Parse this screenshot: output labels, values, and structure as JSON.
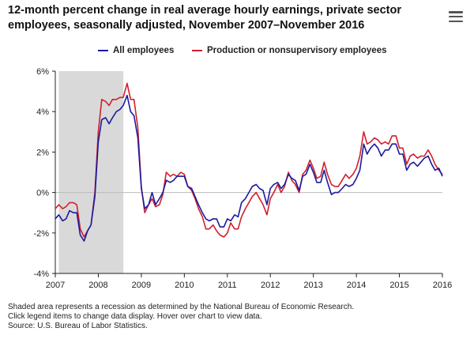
{
  "header": {
    "title": "12-month percent change in real average hourly earnings, private sector employees, seasonally adjusted, November 2007–November 2016",
    "menu_icon": "hamburger-menu-icon"
  },
  "legend": {
    "items": [
      {
        "label": "All employees",
        "color": "#1b1b9e"
      },
      {
        "label": "Production or nonsupervisory employees",
        "color": "#d0202a"
      }
    ]
  },
  "colors": {
    "recession_shade": "#d9d9d9",
    "axis": "#222222",
    "zero_line": "#bbbbbb"
  },
  "footnotes": [
    "Shaded area represents a recession as determined by the National Bureau of Economic Research.",
    "Click legend items to change data display. Hover over chart to view data.",
    "Source: U.S. Bureau of Labor Statistics."
  ],
  "chart_data": {
    "type": "line",
    "title": "12-month percent change in real average hourly earnings, private sector employees, seasonally adjusted, November 2007–November 2016",
    "xlabel": "",
    "ylabel": "",
    "xlim": [
      2007,
      2016
    ],
    "ylim": [
      -4,
      6
    ],
    "grid": false,
    "legend_position": "top",
    "x_ticks": [
      "2007",
      "2008",
      "2009",
      "2010",
      "2011",
      "2012",
      "2013",
      "2014",
      "2015",
      "2016"
    ],
    "y_ticks": [
      "-4%",
      "-2%",
      "0%",
      "2%",
      "4%",
      "6%"
    ],
    "recession_shading": {
      "start": 2007.083,
      "end": 2008.583
    },
    "series": [
      {
        "name": "All employees",
        "color": "#1b1b9e",
        "points": [
          [
            2007.0,
            -1.3
          ],
          [
            2007.08,
            -1.1
          ],
          [
            2007.17,
            -1.4
          ],
          [
            2007.25,
            -1.3
          ],
          [
            2007.33,
            -0.9
          ],
          [
            2007.42,
            -1.0
          ],
          [
            2007.5,
            -1.0
          ],
          [
            2007.58,
            -2.1
          ],
          [
            2007.67,
            -2.4
          ],
          [
            2007.75,
            -1.9
          ],
          [
            2007.83,
            -1.6
          ],
          [
            2007.92,
            -0.2
          ],
          [
            2008.0,
            2.5
          ],
          [
            2008.08,
            3.6
          ],
          [
            2008.17,
            3.7
          ],
          [
            2008.25,
            3.4
          ],
          [
            2008.33,
            3.7
          ],
          [
            2008.42,
            4.0
          ],
          [
            2008.5,
            4.1
          ],
          [
            2008.58,
            4.3
          ],
          [
            2008.67,
            4.8
          ],
          [
            2008.75,
            4.0
          ],
          [
            2008.83,
            3.8
          ],
          [
            2008.92,
            2.7
          ],
          [
            2009.0,
            0.2
          ],
          [
            2009.08,
            -0.8
          ],
          [
            2009.17,
            -0.6
          ],
          [
            2009.25,
            0.0
          ],
          [
            2009.33,
            -0.6
          ],
          [
            2009.42,
            -0.3
          ],
          [
            2009.5,
            0.0
          ],
          [
            2009.58,
            0.6
          ],
          [
            2009.67,
            0.5
          ],
          [
            2009.75,
            0.6
          ],
          [
            2009.83,
            0.8
          ],
          [
            2009.92,
            0.8
          ],
          [
            2010.0,
            0.8
          ],
          [
            2010.08,
            0.3
          ],
          [
            2010.17,
            0.2
          ],
          [
            2010.25,
            -0.2
          ],
          [
            2010.33,
            -0.6
          ],
          [
            2010.42,
            -1.0
          ],
          [
            2010.5,
            -1.3
          ],
          [
            2010.58,
            -1.4
          ],
          [
            2010.67,
            -1.3
          ],
          [
            2010.75,
            -1.3
          ],
          [
            2010.83,
            -1.7
          ],
          [
            2010.92,
            -1.7
          ],
          [
            2011.0,
            -1.3
          ],
          [
            2011.08,
            -1.4
          ],
          [
            2011.17,
            -1.1
          ],
          [
            2011.25,
            -1.2
          ],
          [
            2011.33,
            -0.5
          ],
          [
            2011.42,
            -0.3
          ],
          [
            2011.5,
            0.0
          ],
          [
            2011.58,
            0.3
          ],
          [
            2011.67,
            0.4
          ],
          [
            2011.75,
            0.2
          ],
          [
            2011.83,
            0.1
          ],
          [
            2011.92,
            -0.6
          ],
          [
            2012.0,
            0.2
          ],
          [
            2012.08,
            0.4
          ],
          [
            2012.17,
            0.5
          ],
          [
            2012.25,
            0.2
          ],
          [
            2012.33,
            0.4
          ],
          [
            2012.42,
            0.9
          ],
          [
            2012.5,
            0.7
          ],
          [
            2012.58,
            0.6
          ],
          [
            2012.67,
            0.1
          ],
          [
            2012.75,
            0.8
          ],
          [
            2012.83,
            0.9
          ],
          [
            2012.92,
            1.4
          ],
          [
            2013.0,
            1.0
          ],
          [
            2013.08,
            0.5
          ],
          [
            2013.17,
            0.5
          ],
          [
            2013.25,
            1.1
          ],
          [
            2013.33,
            0.5
          ],
          [
            2013.42,
            -0.1
          ],
          [
            2013.5,
            0.0
          ],
          [
            2013.58,
            0.0
          ],
          [
            2013.67,
            0.2
          ],
          [
            2013.75,
            0.4
          ],
          [
            2013.83,
            0.3
          ],
          [
            2013.92,
            0.4
          ],
          [
            2014.0,
            0.7
          ],
          [
            2014.08,
            1.1
          ],
          [
            2014.17,
            2.4
          ],
          [
            2014.25,
            1.9
          ],
          [
            2014.33,
            2.2
          ],
          [
            2014.42,
            2.4
          ],
          [
            2014.5,
            2.2
          ],
          [
            2014.58,
            1.8
          ],
          [
            2014.67,
            2.1
          ],
          [
            2014.75,
            2.1
          ],
          [
            2014.83,
            2.4
          ],
          [
            2014.92,
            2.4
          ],
          [
            2015.0,
            1.9
          ],
          [
            2015.08,
            1.9
          ],
          [
            2015.17,
            1.1
          ],
          [
            2015.25,
            1.4
          ],
          [
            2015.33,
            1.5
          ],
          [
            2015.42,
            1.3
          ],
          [
            2015.5,
            1.5
          ],
          [
            2015.58,
            1.7
          ],
          [
            2015.67,
            1.8
          ],
          [
            2015.75,
            1.4
          ],
          [
            2015.83,
            1.1
          ],
          [
            2015.92,
            1.2
          ],
          [
            2016.0,
            0.8
          ]
        ]
      },
      {
        "name": "Production or nonsupervisory employees",
        "color": "#d0202a",
        "points": [
          [
            2007.0,
            -0.8
          ],
          [
            2007.08,
            -0.6
          ],
          [
            2007.17,
            -0.8
          ],
          [
            2007.25,
            -0.7
          ],
          [
            2007.33,
            -0.5
          ],
          [
            2007.42,
            -0.5
          ],
          [
            2007.5,
            -0.6
          ],
          [
            2007.58,
            -1.8
          ],
          [
            2007.67,
            -2.2
          ],
          [
            2007.75,
            -1.9
          ],
          [
            2007.83,
            -1.6
          ],
          [
            2007.92,
            0.0
          ],
          [
            2008.0,
            3.0
          ],
          [
            2008.08,
            4.6
          ],
          [
            2008.17,
            4.5
          ],
          [
            2008.25,
            4.3
          ],
          [
            2008.33,
            4.6
          ],
          [
            2008.42,
            4.6
          ],
          [
            2008.5,
            4.7
          ],
          [
            2008.58,
            4.7
          ],
          [
            2008.67,
            5.4
          ],
          [
            2008.75,
            4.6
          ],
          [
            2008.83,
            4.6
          ],
          [
            2008.92,
            3.2
          ],
          [
            2009.0,
            0.3
          ],
          [
            2009.08,
            -1.0
          ],
          [
            2009.17,
            -0.6
          ],
          [
            2009.25,
            -0.3
          ],
          [
            2009.33,
            -0.7
          ],
          [
            2009.42,
            -0.6
          ],
          [
            2009.5,
            -0.1
          ],
          [
            2009.58,
            1.0
          ],
          [
            2009.67,
            0.8
          ],
          [
            2009.75,
            0.9
          ],
          [
            2009.83,
            0.8
          ],
          [
            2009.92,
            1.0
          ],
          [
            2010.0,
            0.9
          ],
          [
            2010.08,
            0.3
          ],
          [
            2010.17,
            0.1
          ],
          [
            2010.25,
            -0.3
          ],
          [
            2010.33,
            -0.8
          ],
          [
            2010.42,
            -1.2
          ],
          [
            2010.5,
            -1.8
          ],
          [
            2010.58,
            -1.8
          ],
          [
            2010.67,
            -1.6
          ],
          [
            2010.75,
            -1.9
          ],
          [
            2010.83,
            -2.1
          ],
          [
            2010.92,
            -2.2
          ],
          [
            2011.0,
            -2.0
          ],
          [
            2011.08,
            -1.5
          ],
          [
            2011.17,
            -1.8
          ],
          [
            2011.25,
            -1.8
          ],
          [
            2011.33,
            -1.2
          ],
          [
            2011.42,
            -0.8
          ],
          [
            2011.5,
            -0.5
          ],
          [
            2011.58,
            -0.2
          ],
          [
            2011.67,
            0.0
          ],
          [
            2011.75,
            -0.3
          ],
          [
            2011.83,
            -0.6
          ],
          [
            2011.92,
            -1.1
          ],
          [
            2012.0,
            -0.3
          ],
          [
            2012.08,
            0.0
          ],
          [
            2012.17,
            0.4
          ],
          [
            2012.25,
            0.0
          ],
          [
            2012.33,
            0.3
          ],
          [
            2012.42,
            1.0
          ],
          [
            2012.5,
            0.6
          ],
          [
            2012.58,
            0.4
          ],
          [
            2012.67,
            0.0
          ],
          [
            2012.75,
            0.9
          ],
          [
            2012.83,
            1.1
          ],
          [
            2012.92,
            1.6
          ],
          [
            2013.0,
            1.2
          ],
          [
            2013.08,
            0.7
          ],
          [
            2013.17,
            0.8
          ],
          [
            2013.25,
            1.5
          ],
          [
            2013.33,
            0.9
          ],
          [
            2013.42,
            0.4
          ],
          [
            2013.5,
            0.3
          ],
          [
            2013.58,
            0.3
          ],
          [
            2013.67,
            0.6
          ],
          [
            2013.75,
            0.9
          ],
          [
            2013.83,
            0.7
          ],
          [
            2013.92,
            0.9
          ],
          [
            2014.0,
            1.2
          ],
          [
            2014.08,
            1.8
          ],
          [
            2014.17,
            3.0
          ],
          [
            2014.25,
            2.4
          ],
          [
            2014.33,
            2.5
          ],
          [
            2014.42,
            2.7
          ],
          [
            2014.5,
            2.6
          ],
          [
            2014.58,
            2.4
          ],
          [
            2014.67,
            2.5
          ],
          [
            2014.75,
            2.4
          ],
          [
            2014.83,
            2.8
          ],
          [
            2014.92,
            2.8
          ],
          [
            2015.0,
            2.2
          ],
          [
            2015.08,
            2.2
          ],
          [
            2015.17,
            1.4
          ],
          [
            2015.25,
            1.8
          ],
          [
            2015.33,
            1.9
          ],
          [
            2015.42,
            1.7
          ],
          [
            2015.5,
            1.8
          ],
          [
            2015.58,
            1.8
          ],
          [
            2015.67,
            2.1
          ],
          [
            2015.75,
            1.8
          ],
          [
            2015.83,
            1.4
          ],
          [
            2015.92,
            1.1
          ],
          [
            2016.0,
            0.9
          ]
        ]
      }
    ]
  }
}
